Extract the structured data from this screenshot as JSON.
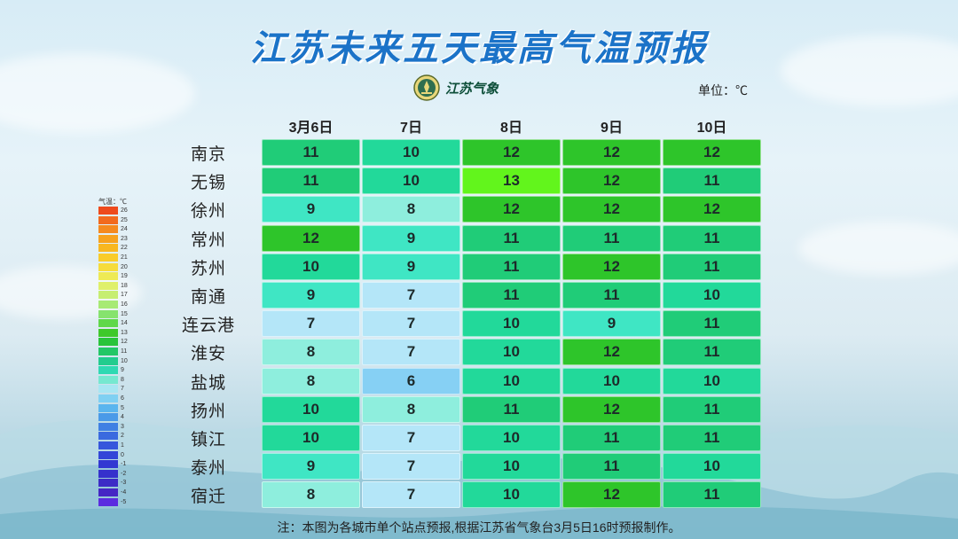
{
  "title": "江苏未来五天最高气温预报",
  "logo_text": "江苏气象",
  "unit": "单位：℃",
  "note": "注：本图为各城市单个站点预报,根据江苏省气象台3月5日16时预报制作。",
  "legend": {
    "title": "气温：℃",
    "values": [
      26,
      25,
      24,
      23,
      22,
      21,
      20,
      19,
      18,
      17,
      16,
      15,
      14,
      13,
      12,
      11,
      10,
      9,
      8,
      7,
      6,
      5,
      4,
      3,
      2,
      1,
      0,
      -1,
      -2,
      -3,
      -4,
      -5
    ],
    "colors": [
      "#ee4a1c",
      "#f26a1e",
      "#f58a1f",
      "#f7a21e",
      "#f8b720",
      "#f9cc2a",
      "#f6dc3c",
      "#eeea55",
      "#dff06a",
      "#c6ee72",
      "#a7ea74",
      "#86e36e",
      "#5fd84a",
      "#3ec92a",
      "#29c43a",
      "#23c766",
      "#22cc8e",
      "#2fd9b2",
      "#76e8d0",
      "#a8e6f2",
      "#7fd0f2",
      "#5ab5ee",
      "#4a9ae8",
      "#3f80e3",
      "#3a6adf",
      "#3656dc",
      "#3346d8",
      "#3238d2",
      "#3530cc",
      "#3c2bc6",
      "#4526c4",
      "#5b2ce0"
    ]
  },
  "chart_data": {
    "type": "table",
    "title": "江苏未来五天最高气温预报",
    "unit": "℃",
    "columns": [
      "3月6日",
      "7日",
      "8日",
      "9日",
      "10日"
    ],
    "rows": [
      "南京",
      "无锡",
      "徐州",
      "常州",
      "苏州",
      "南通",
      "连云港",
      "淮安",
      "盐城",
      "扬州",
      "镇江",
      "泰州",
      "宿迁"
    ],
    "values": [
      [
        11,
        10,
        12,
        12,
        12
      ],
      [
        11,
        10,
        13,
        12,
        11
      ],
      [
        9,
        8,
        12,
        12,
        12
      ],
      [
        12,
        9,
        11,
        11,
        11
      ],
      [
        10,
        9,
        11,
        12,
        11
      ],
      [
        9,
        7,
        11,
        11,
        10
      ],
      [
        7,
        7,
        10,
        9,
        11
      ],
      [
        8,
        7,
        10,
        12,
        11
      ],
      [
        8,
        6,
        10,
        10,
        10
      ],
      [
        10,
        8,
        11,
        12,
        11
      ],
      [
        10,
        7,
        10,
        11,
        11
      ],
      [
        9,
        7,
        10,
        11,
        10
      ],
      [
        8,
        7,
        10,
        12,
        11
      ]
    ],
    "color_scale": {
      "6": "#86d0f4",
      "7": "#b4e6f8",
      "8": "#8eeedd",
      "9": "#3fe6c4",
      "10": "#22d99a",
      "11": "#20cc78",
      "12": "#2ec52a",
      "13": "#62f51c"
    }
  }
}
